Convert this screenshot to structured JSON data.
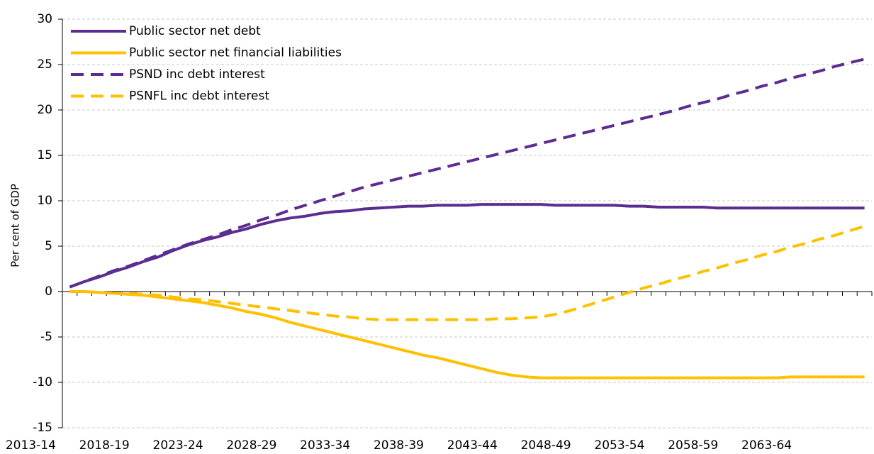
{
  "chart_data": {
    "type": "line",
    "ylabel": "Per cent of GDP",
    "categories": [
      "2013-14",
      null,
      null,
      null,
      null,
      "2018-19",
      null,
      null,
      null,
      null,
      "2023-24",
      null,
      null,
      null,
      null,
      "2028-29",
      null,
      null,
      null,
      null,
      "2033-34",
      null,
      null,
      null,
      null,
      "2038-39",
      null,
      null,
      null,
      null,
      "2043-44",
      null,
      null,
      null,
      null,
      "2048-49",
      null,
      null,
      null,
      null,
      "2053-54",
      null,
      null,
      null,
      null,
      "2058-59",
      null,
      null,
      null,
      null,
      "2063-64",
      null,
      null,
      null,
      null
    ],
    "ylim": [
      -15,
      30
    ],
    "yticks": [
      -15,
      -10,
      -5,
      0,
      5,
      10,
      15,
      20,
      25,
      30
    ],
    "grid": true,
    "legend": "top-left",
    "series": [
      {
        "name": "Public sector net debt",
        "color": "#5c2d91",
        "dash": false,
        "values": [
          0.5,
          1.1,
          1.6,
          2.2,
          2.7,
          3.3,
          3.8,
          4.5,
          5.1,
          5.6,
          6.0,
          6.5,
          6.9,
          7.4,
          7.8,
          8.1,
          8.3,
          8.6,
          8.8,
          8.9,
          9.1,
          9.2,
          9.3,
          9.4,
          9.4,
          9.5,
          9.5,
          9.5,
          9.6,
          9.6,
          9.6,
          9.6,
          9.6,
          9.5,
          9.5,
          9.5,
          9.5,
          9.5,
          9.4,
          9.4,
          9.3,
          9.3,
          9.3,
          9.3,
          9.2,
          9.2,
          9.2,
          9.2,
          9.2,
          9.2,
          9.2,
          9.2,
          9.2,
          9.2,
          9.2
        ]
      },
      {
        "name": "Public sector net financial liabilities",
        "color": "#ffc000",
        "dash": false,
        "values": [
          0,
          0,
          -0.1,
          -0.2,
          -0.3,
          -0.4,
          -0.6,
          -0.8,
          -1.0,
          -1.2,
          -1.5,
          -1.8,
          -2.2,
          -2.5,
          -2.9,
          -3.4,
          -3.8,
          -4.2,
          -4.6,
          -5.0,
          -5.4,
          -5.8,
          -6.2,
          -6.6,
          -7.0,
          -7.3,
          -7.7,
          -8.1,
          -8.5,
          -8.9,
          -9.2,
          -9.4,
          -9.5,
          -9.5,
          -9.5,
          -9.5,
          -9.5,
          -9.5,
          -9.5,
          -9.5,
          -9.5,
          -9.5,
          -9.5,
          -9.5,
          -9.5,
          -9.5,
          -9.5,
          -9.5,
          -9.5,
          -9.4,
          -9.4,
          -9.4,
          -9.4,
          -9.4,
          -9.4
        ]
      },
      {
        "name": "PSND inc debt interest",
        "color": "#5c2d91",
        "dash": true,
        "values": [
          0.5,
          1.1,
          1.7,
          2.3,
          2.8,
          3.4,
          4.0,
          4.6,
          5.2,
          5.7,
          6.2,
          6.8,
          7.3,
          7.9,
          8.4,
          9.0,
          9.5,
          10.0,
          10.5,
          11.0,
          11.5,
          11.9,
          12.3,
          12.7,
          13.1,
          13.5,
          13.9,
          14.3,
          14.7,
          15.1,
          15.5,
          15.9,
          16.3,
          16.7,
          17.1,
          17.5,
          17.9,
          18.3,
          18.7,
          19.1,
          19.5,
          19.9,
          20.4,
          20.8,
          21.2,
          21.7,
          22.1,
          22.6,
          23.0,
          23.5,
          23.9,
          24.3,
          24.8,
          25.2,
          25.6
        ]
      },
      {
        "name": "PSNFL inc debt interest",
        "color": "#ffc000",
        "dash": true,
        "values": [
          0,
          0,
          -0.1,
          -0.2,
          -0.2,
          -0.3,
          -0.4,
          -0.6,
          -0.8,
          -0.9,
          -1.1,
          -1.3,
          -1.5,
          -1.7,
          -1.9,
          -2.1,
          -2.3,
          -2.5,
          -2.7,
          -2.8,
          -3.0,
          -3.1,
          -3.1,
          -3.1,
          -3.1,
          -3.1,
          -3.1,
          -3.1,
          -3.1,
          -3.0,
          -3.0,
          -2.9,
          -2.8,
          -2.5,
          -2.1,
          -1.6,
          -1.1,
          -0.6,
          -0.1,
          0.4,
          0.8,
          1.3,
          1.7,
          2.2,
          2.6,
          3.1,
          3.5,
          4.0,
          4.4,
          4.9,
          5.3,
          5.8,
          6.2,
          6.7,
          7.2
        ]
      }
    ]
  }
}
